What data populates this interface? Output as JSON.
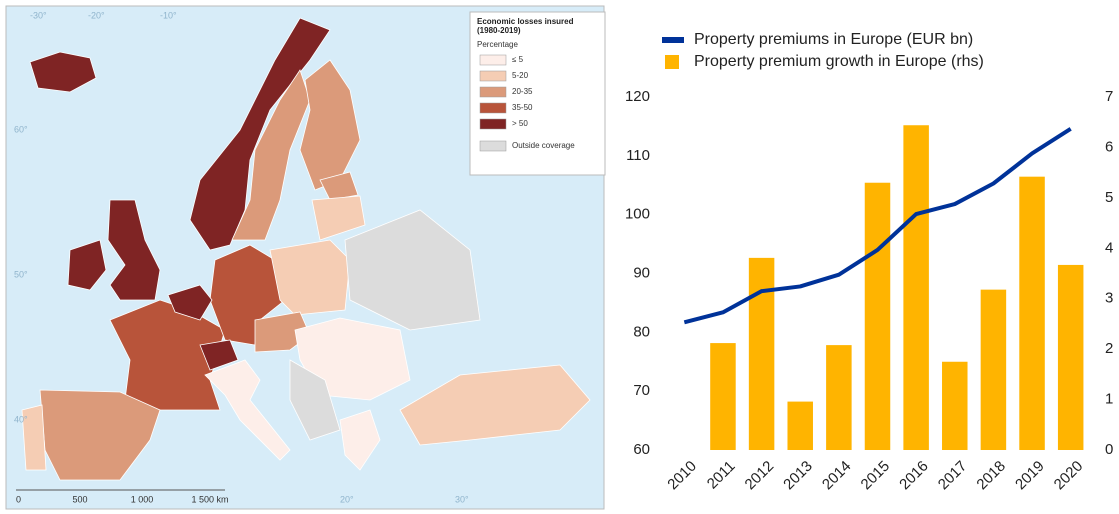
{
  "map": {
    "legend": {
      "title": "Economic losses insured",
      "title2": "(1980-2019)",
      "subtitle": "Percentage",
      "items": [
        {
          "label": "≤ 5",
          "color": "#fdeee9"
        },
        {
          "label": "5-20",
          "color": "#f5cdb4"
        },
        {
          "label": "20-35",
          "color": "#db9a7a"
        },
        {
          "label": "35-50",
          "color": "#b8543a"
        },
        {
          "label": "> 50",
          "color": "#7f2424"
        },
        {
          "label": "Outside coverage",
          "color": "#dcdcdc"
        }
      ]
    },
    "scale": [
      "0",
      "500",
      "1 000",
      "1 500 km"
    ],
    "graticule": [
      "-30°",
      "-20°",
      "-10°",
      "60°",
      "50°",
      "40°",
      "20°",
      "30°"
    ]
  },
  "chart_data": {
    "type": "bar-line",
    "categories": [
      "2010",
      "2011",
      "2012",
      "2013",
      "2014",
      "2015",
      "2016",
      "2017",
      "2018",
      "2019",
      "2020"
    ],
    "series": [
      {
        "name": "Property premiums in Europe (EUR bn)",
        "type": "line",
        "color": "#003299",
        "axis": "y",
        "values": [
          81.7,
          83.4,
          87.0,
          87.8,
          89.8,
          94.0,
          100.1,
          101.8,
          105.3,
          110.4,
          114.6
        ]
      },
      {
        "name": "Property premium growth in Europe (rhs)",
        "type": "bar",
        "color": "#ffb400",
        "axis": "y2",
        "values": [
          null,
          2.12,
          3.81,
          0.96,
          2.08,
          5.3,
          6.44,
          1.75,
          3.18,
          5.42,
          3.67
        ]
      }
    ],
    "ylim": [
      60,
      120
    ],
    "yticks": [
      60,
      70,
      80,
      90,
      100,
      110,
      120
    ],
    "y2lim": [
      0,
      7
    ],
    "y2ticks": [
      0,
      1,
      2,
      3,
      4,
      5,
      6,
      7
    ],
    "grid": false
  }
}
